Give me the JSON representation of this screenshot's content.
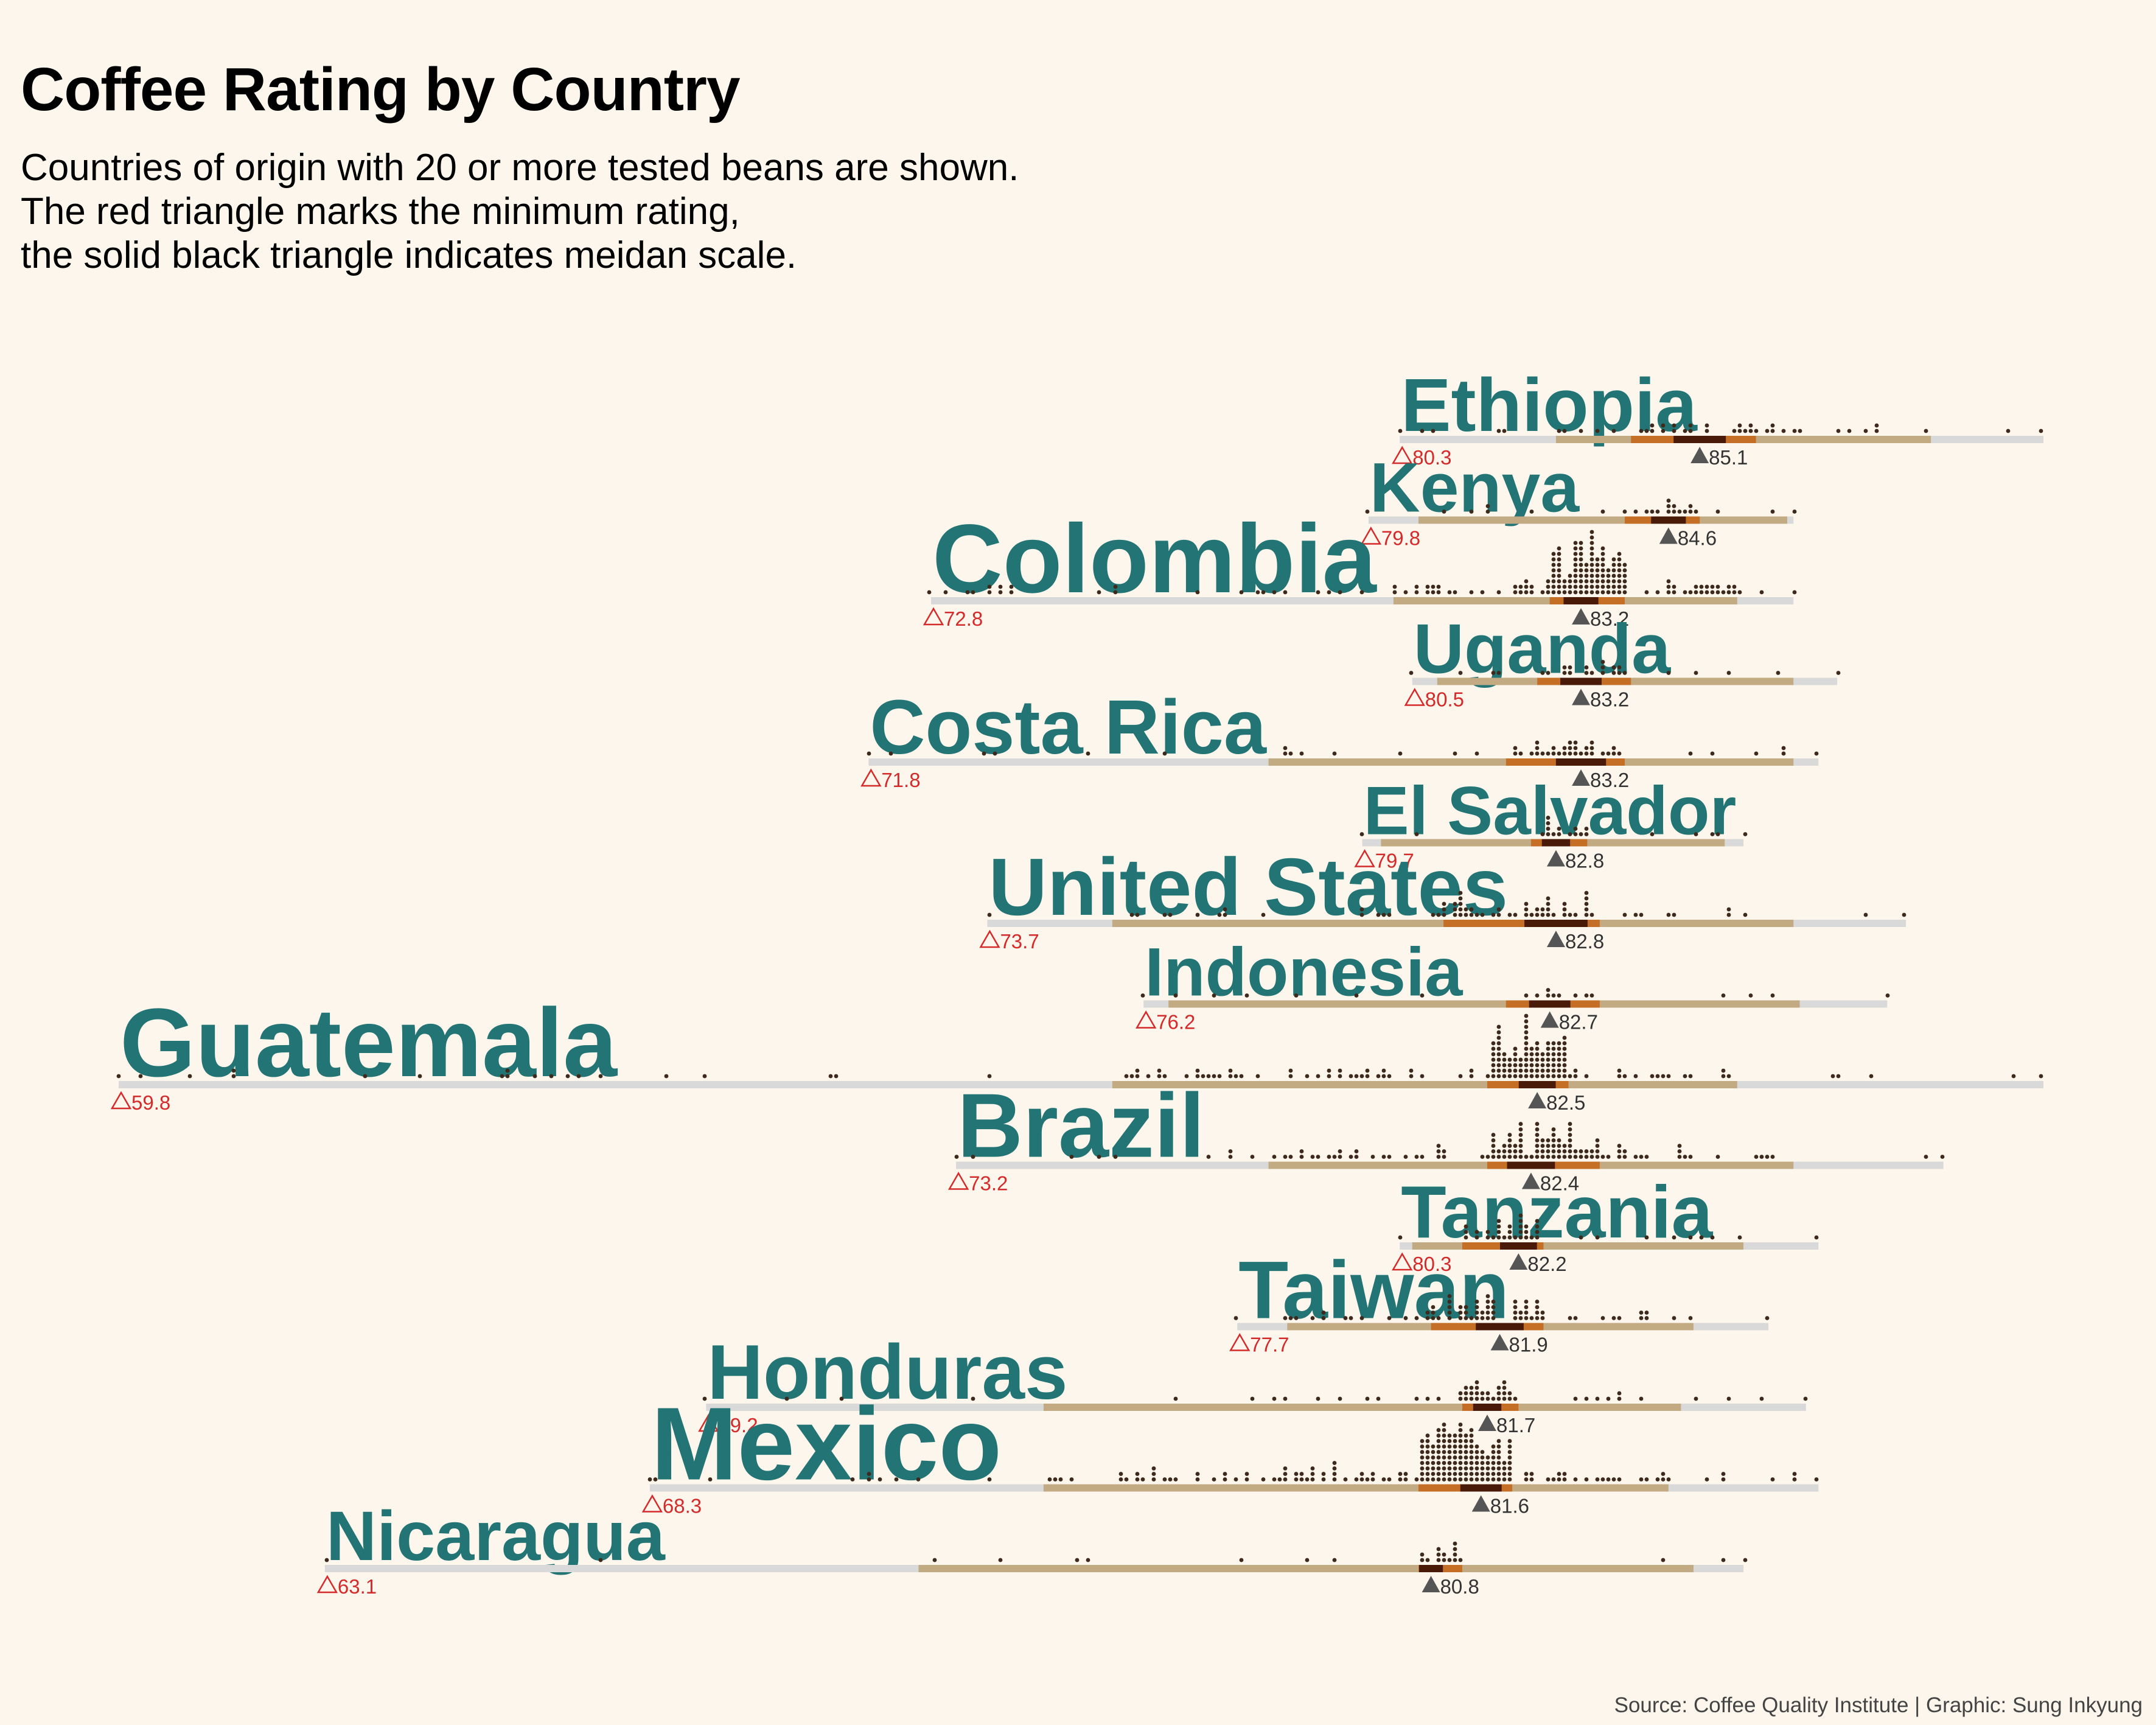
{
  "chart_data": {
    "type": "scatter",
    "title": "Coffee Rating by Country",
    "subtitle": [
      "Countries of origin with 20 or more tested beans are shown.",
      "The red triangle marks the minimum rating,",
      "the solid black triangle indicates meidan scale."
    ],
    "source": "Source: Coffee Quality Institute | Graphic: Sung Inkyung",
    "xlim": [
      59.8,
      90.6
    ],
    "grid": false,
    "legend": "none",
    "colors": {
      "country_label": "#237575",
      "range_track": "#d9d9d9",
      "middle_band": "#c2aa82",
      "quartile_band": "#c46e26",
      "median_band": "#4a1a08",
      "dot": "#3e2a1c",
      "min_marker": "#d42a2a",
      "median_marker": "#555555"
    },
    "series": [
      {
        "name": "Ethiopia",
        "n": 44,
        "min": 80.3,
        "min_label": "80.3",
        "max": 90.6,
        "median": 85.1,
        "median_label": "85.1",
        "q1": 84.0,
        "q3": 86.0,
        "p10": 82.8,
        "p90": 88.8
      },
      {
        "name": "Kenya",
        "n": 25,
        "min": 79.8,
        "min_label": "79.8",
        "max": 86.6,
        "median": 84.6,
        "median_label": "84.6",
        "q1": 83.9,
        "q3": 85.1,
        "p10": 80.6,
        "p90": 86.5
      },
      {
        "name": "Colombia",
        "n": 183,
        "min": 72.8,
        "min_label": "72.8",
        "max": 86.6,
        "median": 83.2,
        "median_label": "83.2",
        "q1": 82.7,
        "q3": 83.9,
        "p10": 80.2,
        "p90": 85.7
      },
      {
        "name": "Uganda",
        "n": 26,
        "min": 80.5,
        "min_label": "80.5",
        "max": 87.3,
        "median": 83.2,
        "median_label": "83.2",
        "q1": 82.5,
        "q3": 84.0,
        "p10": 80.9,
        "p90": 86.6
      },
      {
        "name": "Costa Rica",
        "n": 51,
        "min": 71.8,
        "min_label": "71.8",
        "max": 87.0,
        "median": 83.2,
        "median_label": "83.2",
        "q1": 82.0,
        "q3": 83.9,
        "p10": 78.2,
        "p90": 86.6
      },
      {
        "name": "El Salvador",
        "n": 21,
        "min": 79.7,
        "min_label": "79.7",
        "max": 85.8,
        "median": 82.8,
        "median_label": "82.8",
        "q1": 82.4,
        "q3": 83.3,
        "p10": 80.0,
        "p90": 85.5
      },
      {
        "name": "United States",
        "n": 73,
        "min": 73.7,
        "min_label": "73.7",
        "max": 88.4,
        "median": 82.8,
        "median_label": "82.8",
        "q1": 81.0,
        "q3": 83.5,
        "p10": 75.7,
        "p90": 86.6
      },
      {
        "name": "Indonesia",
        "n": 20,
        "min": 76.2,
        "min_label": "76.2",
        "max": 88.1,
        "median": 82.7,
        "median_label": "82.7",
        "q1": 82.0,
        "q3": 83.5,
        "p10": 76.6,
        "p90": 86.7
      },
      {
        "name": "Guatemala",
        "n": 181,
        "min": 59.8,
        "min_label": "59.8",
        "max": 90.6,
        "median": 82.5,
        "median_label": "82.5",
        "q1": 81.7,
        "q3": 83.0,
        "p10": 75.7,
        "p90": 85.7
      },
      {
        "name": "Brazil",
        "n": 132,
        "min": 73.2,
        "min_label": "73.2",
        "max": 89.0,
        "median": 82.4,
        "median_label": "82.4",
        "q1": 81.7,
        "q3": 83.5,
        "p10": 78.2,
        "p90": 86.6
      },
      {
        "name": "Tanzania",
        "n": 40,
        "min": 80.3,
        "min_label": "80.3",
        "max": 87.0,
        "median": 82.2,
        "median_label": "82.2",
        "q1": 81.3,
        "q3": 82.6,
        "p10": 80.5,
        "p90": 85.8
      },
      {
        "name": "Taiwan",
        "n": 75,
        "min": 77.7,
        "min_label": "77.7",
        "max": 86.2,
        "median": 81.9,
        "median_label": "81.9",
        "q1": 80.8,
        "q3": 82.6,
        "p10": 78.5,
        "p90": 85.0
      },
      {
        "name": "Honduras",
        "n": 53,
        "min": 69.2,
        "min_label": "69.2",
        "max": 86.8,
        "median": 81.7,
        "median_label": "81.7",
        "q1": 81.3,
        "q3": 82.2,
        "p10": 74.6,
        "p90": 84.8
      },
      {
        "name": "Mexico",
        "n": 236,
        "min": 68.3,
        "min_label": "68.3",
        "max": 87.0,
        "median": 81.6,
        "median_label": "81.6",
        "q1": 80.6,
        "q3": 82.1,
        "p10": 74.6,
        "p90": 84.6
      },
      {
        "name": "Nicaragua",
        "n": 26,
        "min": 63.1,
        "min_label": "63.1",
        "max": 85.8,
        "median": 80.8,
        "median_label": "80.8",
        "q1": 80.6,
        "q3": 81.3,
        "p10": 72.6,
        "p90": 85.0
      }
    ]
  }
}
